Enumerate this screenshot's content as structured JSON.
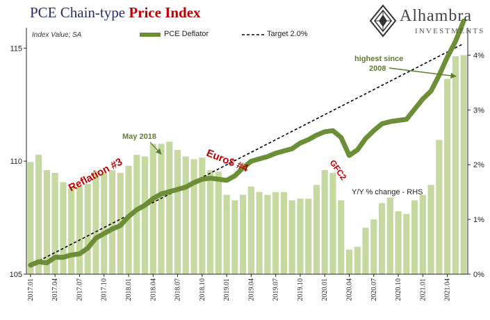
{
  "header": {
    "title_main": "PCE Chain-type",
    "title_accent": "Price Index",
    "subnote": "Index Value; SA"
  },
  "logo": {
    "name": "Alhambra",
    "tagline": "INVESTMENTS"
  },
  "legend": {
    "deflator_label": "PCE Deflator",
    "target_label": "Target 2.0%"
  },
  "colors": {
    "line": "#6b8e36",
    "bars": "#c5d9a0",
    "accent_red": "#c00000",
    "annotation_green": "#5f7f2d",
    "target": "#000000"
  },
  "chart_data": {
    "type": "bar+line",
    "categories": [
      "2017.01",
      "2017.02",
      "2017.03",
      "2017.04",
      "2017.05",
      "2017.06",
      "2017.07",
      "2017.08",
      "2017.09",
      "2017.10",
      "2017.11",
      "2017.12",
      "2018.01",
      "2018.02",
      "2018.03",
      "2018.04",
      "2018.05",
      "2018.06",
      "2018.07",
      "2018.08",
      "2018.09",
      "2018.10",
      "2018.11",
      "2018.12",
      "2019.01",
      "2019.02",
      "2019.03",
      "2019.04",
      "2019.05",
      "2019.06",
      "2019.07",
      "2019.08",
      "2019.09",
      "2019.10",
      "2019.11",
      "2019.12",
      "2020.01",
      "2020.02",
      "2020.03",
      "2020.04",
      "2020.05",
      "2020.06",
      "2020.07",
      "2020.08",
      "2020.09",
      "2020.10",
      "2020.11",
      "2020.12",
      "2021.01",
      "2021.02",
      "2021.03",
      "2021.04",
      "2021.05",
      "2021.06"
    ],
    "x_tick_labels": [
      "2017.01",
      "2017.04",
      "2017.07",
      "2017.10",
      "2018.01",
      "2018.04",
      "2018.07",
      "2018.10",
      "2019.01",
      "2019.04",
      "2019.07",
      "2019.10",
      "2020.01",
      "2020.04",
      "2020.07",
      "2020.10",
      "2021.01",
      "2021.04"
    ],
    "left_axis": {
      "ticks": [
        105,
        110,
        115
      ],
      "range": [
        105,
        115.9
      ]
    },
    "right_axis": {
      "ticks": [
        "0%",
        "1%",
        "2%",
        "3%",
        "4%"
      ],
      "range": [
        0,
        4.5
      ]
    },
    "series": [
      {
        "name": "PCE Deflator",
        "kind": "line",
        "axis": "left",
        "values": [
          105.4,
          105.55,
          105.5,
          105.75,
          105.75,
          105.85,
          105.9,
          106.15,
          106.6,
          106.8,
          107.0,
          107.15,
          107.55,
          107.85,
          108.05,
          108.35,
          108.55,
          108.65,
          108.75,
          108.85,
          109.05,
          109.2,
          109.25,
          109.2,
          109.15,
          109.35,
          109.7,
          110.0,
          110.1,
          110.2,
          110.35,
          110.45,
          110.55,
          110.8,
          110.95,
          111.15,
          111.3,
          111.35,
          111.05,
          110.25,
          110.5,
          111.0,
          111.35,
          111.65,
          111.75,
          111.8,
          111.85,
          112.3,
          112.75,
          113.1,
          113.8,
          114.6,
          115.3,
          116.2
        ]
      },
      {
        "name": "Y/Y % change - RHS",
        "kind": "bar",
        "axis": "right",
        "values": [
          2.05,
          2.18,
          1.9,
          1.85,
          1.68,
          1.58,
          1.6,
          1.65,
          1.88,
          1.85,
          1.9,
          1.85,
          1.98,
          2.18,
          2.15,
          2.38,
          2.38,
          2.42,
          2.27,
          2.15,
          2.1,
          2.13,
          1.9,
          1.87,
          1.45,
          1.35,
          1.45,
          1.6,
          1.5,
          1.45,
          1.5,
          1.5,
          1.35,
          1.38,
          1.38,
          1.63,
          1.9,
          1.85,
          1.35,
          0.45,
          0.5,
          0.85,
          1.0,
          1.3,
          1.4,
          1.15,
          1.1,
          1.35,
          1.45,
          1.63,
          2.45,
          3.57,
          3.98,
          4.0
        ]
      },
      {
        "name": "Target 2.0%",
        "kind": "dashed-line",
        "axis": "left",
        "start": {
          "x": "2017.01",
          "y": 105.4
        },
        "end": {
          "x": "2021.06",
          "y": 115.2
        }
      }
    ],
    "annotations": [
      {
        "text": "Reflation #3",
        "color": "red"
      },
      {
        "text": "May 2018",
        "color": "green"
      },
      {
        "text": "Euro$ #4",
        "color": "red"
      },
      {
        "text": "GFC2",
        "color": "red"
      },
      {
        "text": "Y/Y % change - RHS",
        "color": "black"
      },
      {
        "text": "highest since",
        "color": "green"
      },
      {
        "text": "2008",
        "color": "green"
      }
    ],
    "grid": false,
    "legend_position": "top"
  }
}
